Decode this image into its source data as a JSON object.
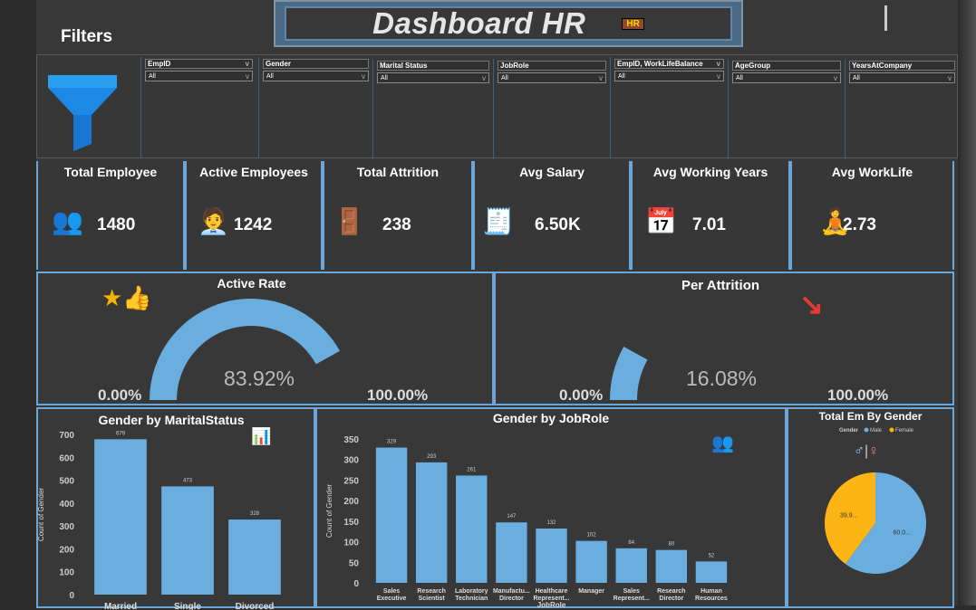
{
  "header": {
    "title": "Dashboard HR",
    "filters_label": "Filters"
  },
  "slicers": [
    {
      "label": "EmpID",
      "value": "All"
    },
    {
      "label": "Gender",
      "value": "All"
    },
    {
      "label": "Marital Status",
      "value": "All"
    },
    {
      "label": "JobRole",
      "value": "All"
    },
    {
      "label": "EmpID, WorkLifeBalance",
      "value": "All"
    },
    {
      "label": "AgeGroup",
      "value": "All"
    },
    {
      "label": "YearsAtCompany",
      "value": "All"
    }
  ],
  "kpis": [
    {
      "title": "Total Employee",
      "value": "1480",
      "icon": "people-icon"
    },
    {
      "title": "Active Employees",
      "value": "1242",
      "icon": "employee-check-icon"
    },
    {
      "title": "Total Attrition",
      "value": "238",
      "icon": "exit-icon"
    },
    {
      "title": "Avg Salary",
      "value": "6.50K",
      "icon": "salary-icon"
    },
    {
      "title": "Avg Working Years",
      "value": "7.01",
      "icon": "calendar-icon"
    },
    {
      "title": "Avg WorkLife",
      "value": "2.73",
      "icon": "worklife-icon"
    }
  ],
  "gauges": [
    {
      "title": "Active Rate",
      "value": 83.92,
      "value_label": "83.92%",
      "min_label": "0.00%",
      "max_label": "100.00%",
      "color": "#6aaee0"
    },
    {
      "title": "Per Attrition",
      "value": 16.08,
      "value_label": "16.08%",
      "min_label": "0.00%",
      "max_label": "100.00%",
      "color": "#6aaee0"
    }
  ],
  "chart_data": [
    {
      "type": "bar",
      "title": "Gender by MaritalStatus",
      "ylabel": "Count of Gender",
      "xlabel": "",
      "categories": [
        "Married",
        "Single",
        "Divorced"
      ],
      "values": [
        679,
        473,
        328
      ],
      "ylim": [
        0,
        700
      ],
      "yticks": [
        "0",
        "100",
        "200",
        "300",
        "400",
        "500",
        "600",
        "700"
      ],
      "color": "#6aaee0"
    },
    {
      "type": "bar",
      "title": "Gender by JobRole",
      "ylabel": "Count of Gender",
      "xlabel": "JobRole",
      "categories": [
        [
          "Sales",
          "Executive"
        ],
        [
          "Research",
          "Scientist"
        ],
        [
          "Laboratory",
          "Technician"
        ],
        [
          "Manufactu...",
          "Director"
        ],
        [
          "Healthcare",
          "Represent..."
        ],
        [
          "Manager"
        ],
        [
          "Sales",
          "Represent..."
        ],
        [
          "Research",
          "Director"
        ],
        [
          "Human",
          "Resources"
        ]
      ],
      "values": [
        329,
        293,
        261,
        147,
        132,
        102,
        84,
        80,
        52
      ],
      "ylim": [
        0,
        350
      ],
      "yticks": [
        "0",
        "50",
        "100",
        "150",
        "200",
        "250",
        "300",
        "350"
      ],
      "color": "#6aaee0"
    },
    {
      "type": "pie",
      "title": "Total Em By Gender",
      "legend_title": "Gender",
      "legend": "top",
      "slices": [
        {
          "name": "Male",
          "value": 60.0,
          "label": "60.0...",
          "color": "#6aaee0"
        },
        {
          "name": "Female",
          "value": 39.9,
          "label": "39.9...",
          "color": "#fdb515"
        }
      ]
    }
  ]
}
